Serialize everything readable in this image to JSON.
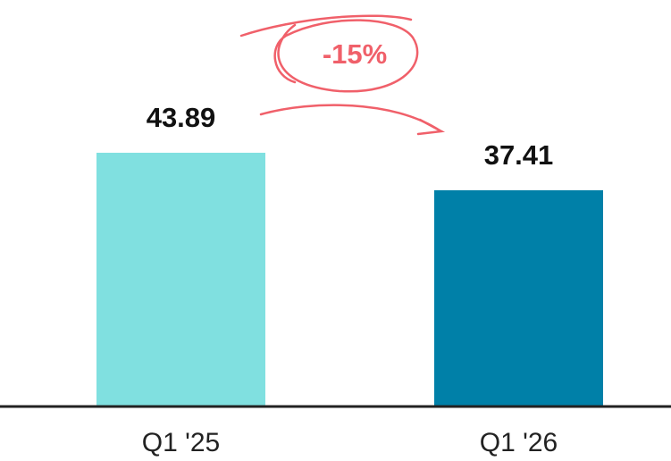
{
  "chart_data": {
    "type": "bar",
    "categories": [
      "Q1 '25",
      "Q1 '26"
    ],
    "values": [
      43.89,
      37.41
    ],
    "colors": [
      "#80e0e0",
      "#0080a8"
    ],
    "ylim": [
      0,
      70
    ],
    "annotation": "-15%"
  }
}
